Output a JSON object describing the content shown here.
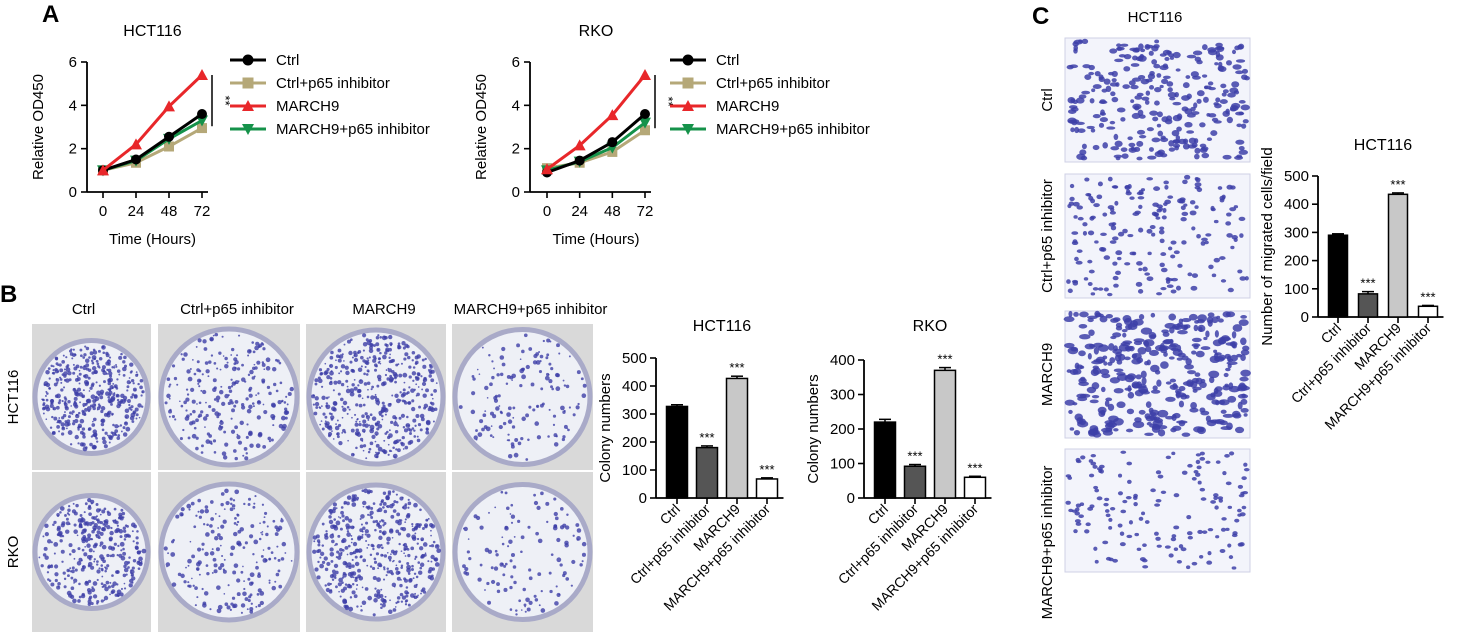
{
  "panels": {
    "A": "A",
    "B": "B",
    "C": "C"
  },
  "colors": {
    "black": "#000000",
    "tan": "#b5a878",
    "red": "#e8272a",
    "green": "#15924a",
    "dark_gray": "#555555",
    "light_gray": "#c8c8c8",
    "white": "#ffffff",
    "stain": "#3d3fa8",
    "plate_bg": "#eef0f6",
    "photo_bg": "#d9d9d9"
  },
  "panel_b": {
    "column_labels": [
      "Ctrl",
      "Ctrl+p65 inhibitor",
      "MARCH9",
      "MARCH9+p65 inhibitor"
    ],
    "row_labels": [
      "HCT116",
      "RKO"
    ],
    "colony_density": [
      [
        0.85,
        0.45,
        0.95,
        0.2
      ],
      [
        0.65,
        0.35,
        0.95,
        0.15
      ]
    ]
  },
  "panel_c": {
    "title": "HCT116",
    "image_labels": [
      "Ctrl",
      "Ctrl+p65 inhibitor",
      "MARCH9",
      "MARCH9+p65 inhibitor"
    ],
    "stain_density": [
      0.55,
      0.3,
      0.75,
      0.2
    ]
  },
  "chart_data": [
    {
      "type": "line",
      "title": "HCT116",
      "xlabel": "Time (Hours)",
      "ylabel": "Relative OD450",
      "x": [
        0,
        24,
        48,
        72
      ],
      "xlim": [
        0,
        72
      ],
      "ylim": [
        0,
        6
      ],
      "yticks": [
        0,
        2,
        4,
        6
      ],
      "series": [
        {
          "name": "Ctrl",
          "values": [
            1.0,
            1.5,
            2.55,
            3.6
          ]
        },
        {
          "name": "Ctrl+p65 inhibitor",
          "values": [
            1.0,
            1.35,
            2.1,
            2.95
          ]
        },
        {
          "name": "MARCH9",
          "values": [
            1.0,
            2.2,
            3.95,
            5.4
          ]
        },
        {
          "name": "MARCH9+p65 inhibitor",
          "values": [
            1.0,
            1.45,
            2.45,
            3.3
          ]
        }
      ],
      "legend": "right",
      "significance": "**"
    },
    {
      "type": "line",
      "title": "RKO",
      "xlabel": "Time (Hours)",
      "ylabel": "Relative OD450",
      "x": [
        0,
        24,
        48,
        72
      ],
      "xlim": [
        0,
        72
      ],
      "ylim": [
        0,
        6
      ],
      "yticks": [
        0,
        2,
        4,
        6
      ],
      "series": [
        {
          "name": "Ctrl",
          "values": [
            0.9,
            1.45,
            2.3,
            3.6
          ]
        },
        {
          "name": "Ctrl+p65 inhibitor",
          "values": [
            1.1,
            1.35,
            1.85,
            2.85
          ]
        },
        {
          "name": "MARCH9",
          "values": [
            1.05,
            2.15,
            3.55,
            5.4
          ]
        },
        {
          "name": "MARCH9+p65 inhibitor",
          "values": [
            1.0,
            1.4,
            2.05,
            3.2
          ]
        }
      ],
      "legend": "right",
      "significance": "**"
    },
    {
      "type": "bar",
      "title": "HCT116",
      "ylabel": "Colony numbers",
      "categories": [
        "Ctrl",
        "Ctrl+p65 inhibitor",
        "MARCH9",
        "MARCH9+p65 inhibitor"
      ],
      "values": [
        327,
        180,
        427,
        68
      ],
      "errors": [
        6,
        6,
        8,
        4
      ],
      "ylim": [
        0,
        500
      ],
      "yticks": [
        0,
        100,
        200,
        300,
        400,
        500
      ],
      "annotations": [
        "",
        "***",
        "***",
        "***"
      ]
    },
    {
      "type": "bar",
      "title": "RKO",
      "ylabel": "Colony numbers",
      "categories": [
        "Ctrl",
        "Ctrl+p65 inhibitor",
        "MARCH9",
        "MARCH9+p65 inhibitor"
      ],
      "values": [
        220,
        92,
        370,
        60
      ],
      "errors": [
        8,
        5,
        8,
        3
      ],
      "ylim": [
        0,
        400
      ],
      "yticks": [
        0,
        100,
        200,
        300,
        400
      ],
      "annotations": [
        "",
        "***",
        "***",
        "***"
      ]
    },
    {
      "type": "bar",
      "title": "HCT116",
      "ylabel": "Number of migrated cells/field",
      "categories": [
        "Ctrl",
        "Ctrl+p65 inhibitor",
        "MARCH9",
        "MARCH9+p65 inhibitor"
      ],
      "values": [
        290,
        82,
        435,
        38
      ],
      "errors": [
        5,
        8,
        5,
        3
      ],
      "ylim": [
        0,
        500
      ],
      "yticks": [
        0,
        100,
        200,
        300,
        400,
        500
      ],
      "annotations": [
        "",
        "***",
        "***",
        "***"
      ]
    }
  ]
}
